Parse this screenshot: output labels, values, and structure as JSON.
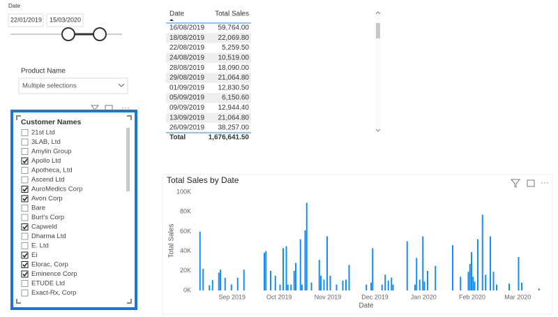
{
  "date_slicer": {
    "label": "Date",
    "start": "22/01/2019",
    "end": "15/03/2020"
  },
  "product_slicer": {
    "label": "Product Name",
    "selection": "Multiple selections"
  },
  "customer_slicer": {
    "label": "Customer Names",
    "items": [
      {
        "name": "21st Ltd",
        "checked": false
      },
      {
        "name": "3LAB, Ltd",
        "checked": false
      },
      {
        "name": "Amylin Group",
        "checked": false
      },
      {
        "name": "Apollo Ltd",
        "checked": true
      },
      {
        "name": "Apotheca, Ltd",
        "checked": false
      },
      {
        "name": "Ascend Ltd",
        "checked": false
      },
      {
        "name": "AuroMedics Corp",
        "checked": true
      },
      {
        "name": "Avon Corp",
        "checked": true
      },
      {
        "name": "Bare",
        "checked": false
      },
      {
        "name": "Burt's Corp",
        "checked": false
      },
      {
        "name": "Capweld",
        "checked": true
      },
      {
        "name": "Dharma Ltd",
        "checked": false
      },
      {
        "name": "E. Ltd",
        "checked": false
      },
      {
        "name": "Ei",
        "checked": true
      },
      {
        "name": "Elorac, Corp",
        "checked": true
      },
      {
        "name": "Eminence Corp",
        "checked": true
      },
      {
        "name": "ETUDE Ltd",
        "checked": false
      },
      {
        "name": "Exact-Rx, Corp",
        "checked": false
      }
    ]
  },
  "table": {
    "columns": [
      "Date",
      "Total Sales"
    ],
    "rows": [
      [
        "16/08/2019",
        "59,764.00"
      ],
      [
        "18/08/2019",
        "22,069.80"
      ],
      [
        "22/08/2019",
        "5,259.50"
      ],
      [
        "24/08/2019",
        "10,519.00"
      ],
      [
        "28/08/2019",
        "18,090.00"
      ],
      [
        "29/08/2019",
        "21,064.80"
      ],
      [
        "01/09/2019",
        "12,830.50"
      ],
      [
        "05/09/2019",
        "6,150.60"
      ],
      [
        "09/09/2019",
        "12,944.40"
      ],
      [
        "13/09/2019",
        "21,064.80"
      ],
      [
        "26/09/2019",
        "38,257.00"
      ]
    ],
    "total": [
      "Total",
      "1,676,641.50"
    ]
  },
  "chart_data": {
    "type": "bar",
    "title": "Total Sales by Date",
    "x_label": "Date",
    "y_label": "Total Sales",
    "color": "#118dff",
    "grid": false,
    "x": [
      "16/08/2019",
      "18/08/2019",
      "22/08/2019",
      "24/08/2019",
      "28/08/2019",
      "29/08/2019",
      "01/09/2019",
      "05/09/2019",
      "09/09/2019",
      "13/09/2019",
      "26/09/2019",
      "27/09/2019",
      "30/09/2019",
      "03/10/2019",
      "06/10/2019",
      "08/10/2019",
      "10/10/2019",
      "11/10/2019",
      "13/10/2019",
      "15/10/2019",
      "16/10/2019",
      "19/10/2019",
      "20/10/2019",
      "22/10/2019",
      "23/10/2019",
      "26/10/2019",
      "31/10/2019",
      "01/11/2019",
      "03/11/2019",
      "05/11/2019",
      "07/11/2019",
      "11/11/2019",
      "15/11/2019",
      "17/11/2019",
      "19/11/2019",
      "30/11/2019",
      "03/12/2019",
      "04/12/2019",
      "10/12/2019",
      "12/12/2019",
      "14/12/2019",
      "16/12/2019",
      "17/12/2019",
      "26/12/2019",
      "31/12/2019",
      "01/01/2020",
      "03/01/2020",
      "05/01/2020",
      "06/01/2020",
      "08/01/2020",
      "13/01/2020",
      "24/01/2020",
      "29/01/2020",
      "03/02/2020",
      "04/02/2020",
      "05/02/2020",
      "06/02/2020",
      "07/02/2020",
      "09/02/2020",
      "12/02/2020",
      "14/02/2020",
      "17/02/2020",
      "19/02/2020",
      "21/02/2020",
      "29/02/2020",
      "06/03/2020",
      "08/03/2020",
      "19/03/2020"
    ],
    "values": [
      59764,
      22069.8,
      5259.5,
      10519,
      18090,
      21064.8,
      12830.5,
      6150.6,
      12944.4,
      21064.8,
      38257,
      40000,
      20000,
      15000,
      6000,
      43000,
      45000,
      6000,
      6000,
      20000,
      28000,
      52000,
      6000,
      61000,
      89000,
      8000,
      31000,
      15000,
      11000,
      55000,
      15000,
      6000,
      10000,
      11000,
      26000,
      6000,
      8000,
      43000,
      6000,
      16000,
      10000,
      13000,
      6000,
      50000,
      6000,
      33000,
      11000,
      55000,
      9000,
      20000,
      25000,
      46000,
      14000,
      19000,
      27000,
      39000,
      14000,
      9000,
      52000,
      77000,
      16000,
      55000,
      19000,
      6000,
      7000,
      34000,
      8000,
      2000
    ],
    "xlim": [
      "13/08/2019",
      "20/03/2020"
    ],
    "xticks": [
      {
        "value": "01/09/2019",
        "label": "Sep 2019"
      },
      {
        "value": "01/10/2019",
        "label": "Oct 2019"
      },
      {
        "value": "01/11/2019",
        "label": "Nov 2019"
      },
      {
        "value": "01/12/2019",
        "label": "Dec 2019"
      },
      {
        "value": "01/01/2020",
        "label": "Jan 2020"
      },
      {
        "value": "01/02/2020",
        "label": "Feb 2020"
      },
      {
        "value": "01/03/2020",
        "label": "Mar 2020"
      }
    ],
    "ylim": [
      0,
      100000
    ],
    "yticks": [
      {
        "value": 0,
        "label": "0K"
      },
      {
        "value": 20000,
        "label": "20K"
      },
      {
        "value": 40000,
        "label": "40K"
      },
      {
        "value": 60000,
        "label": "60K"
      },
      {
        "value": 80000,
        "label": "80K"
      },
      {
        "value": 100000,
        "label": "100K"
      }
    ]
  }
}
